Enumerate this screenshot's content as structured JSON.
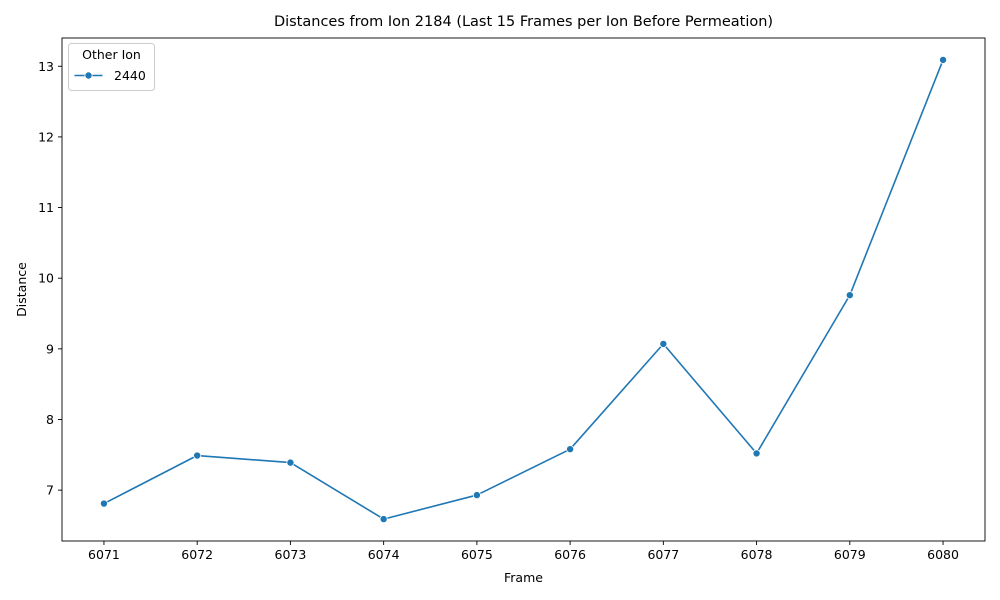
{
  "chart_data": {
    "type": "line",
    "title": "Distances from Ion 2184 (Last 15 Frames per Ion Before Permeation)",
    "xlabel": "Frame",
    "ylabel": "Distance",
    "x": [
      6071,
      6072,
      6073,
      6074,
      6075,
      6076,
      6077,
      6078,
      6079,
      6080
    ],
    "xlim": [
      6070.55,
      6080.45
    ],
    "ylim": [
      6.28,
      13.4
    ],
    "xticks": [
      "6071",
      "6072",
      "6073",
      "6074",
      "6075",
      "6076",
      "6077",
      "6078",
      "6079",
      "6080"
    ],
    "yticks": [
      "7",
      "8",
      "9",
      "10",
      "11",
      "12",
      "13"
    ],
    "grid": false,
    "legend": {
      "title": "Other Ion",
      "placement": "top-left"
    },
    "series": [
      {
        "name": "2440",
        "color": "#1f77b4",
        "marker": "circle",
        "values": [
          6.81,
          7.49,
          7.39,
          6.59,
          6.93,
          7.58,
          9.07,
          7.52,
          9.76,
          13.09
        ]
      }
    ]
  }
}
